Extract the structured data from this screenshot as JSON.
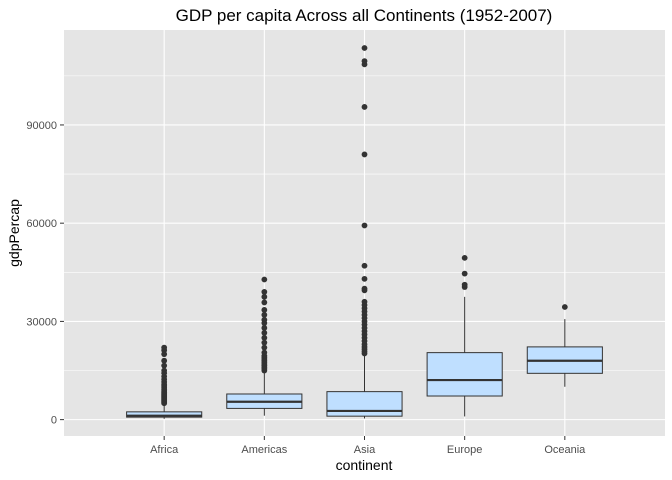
{
  "chart_data": {
    "type": "boxplot",
    "title": "GDP per capita Across all Continents (1952-2007)",
    "xlabel": "continent",
    "ylabel": "gdpPercap",
    "ylim": [
      -5000,
      119000
    ],
    "yticks": [
      0,
      30000,
      60000,
      90000
    ],
    "ytick_labels": [
      "0",
      "30000",
      "60000",
      "90000"
    ],
    "grid": true,
    "colors": {
      "panel": "#e5e5e5",
      "grid_major": "#ffffff",
      "box_fill": "#bfdfff",
      "box_stroke": "#333333",
      "outlier": "#333333"
    },
    "categories": [
      "Africa",
      "Americas",
      "Asia",
      "Europe",
      "Oceania"
    ],
    "boxes": [
      {
        "category": "Africa",
        "whisker_low": 241,
        "q1": 761,
        "median": 1192,
        "q3": 2377,
        "whisker_high": 4800,
        "outliers": [
          5000,
          5300,
          5600,
          5900,
          6200,
          6500,
          6800,
          7100,
          7400,
          7700,
          8000,
          8400,
          8800,
          9300,
          9800,
          10300,
          10800,
          11500,
          12300,
          13200,
          14200,
          15000,
          16500,
          18000,
          20000,
          21200,
          22000
        ]
      },
      {
        "category": "Americas",
        "whisker_low": 1201,
        "q1": 3428,
        "median": 5466,
        "q3": 7830,
        "whisker_high": 14500,
        "outliers": [
          15000,
          15500,
          16000,
          16500,
          17000,
          17500,
          18000,
          18500,
          19000,
          19500,
          20500,
          22000,
          23500,
          25000,
          26500,
          28000,
          29500,
          30500,
          32000,
          33500,
          35800,
          37500,
          39000,
          42800
        ]
      },
      {
        "category": "Asia",
        "whisker_low": 331,
        "q1": 1057,
        "median": 2647,
        "q3": 8549,
        "whisker_high": 19700,
        "outliers": [
          20200,
          20800,
          21500,
          22200,
          23000,
          24000,
          25000,
          26000,
          27000,
          28000,
          29000,
          30000,
          31000,
          32000,
          33000,
          34000,
          35000,
          36000,
          39500,
          40000,
          43000,
          47000,
          59300,
          81000,
          95500,
          108500,
          109500,
          113500
        ]
      },
      {
        "category": "Europe",
        "whisker_low": 974,
        "q1": 7213,
        "median": 12082,
        "q3": 20461,
        "whisker_high": 37500,
        "outliers": [
          40500,
          41200,
          44600,
          49400
        ]
      },
      {
        "category": "Oceania",
        "whisker_low": 10040,
        "q1": 14142,
        "median": 17983,
        "q3": 22214,
        "whisker_high": 30700,
        "outliers": [
          34400
        ]
      }
    ]
  }
}
